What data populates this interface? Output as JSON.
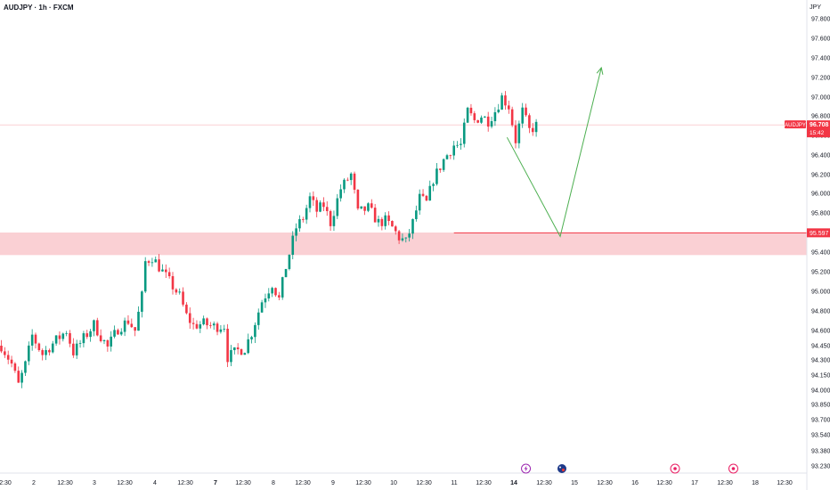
{
  "header": {
    "title": "AUDJPY · 1h · FXCM",
    "currency": "JPY"
  },
  "colors": {
    "up": "#089981",
    "down": "#f23645",
    "zone_fill": "#f9c8cc",
    "zone_line": "#f23645",
    "arrow": "#4caf50",
    "axis_text": "#131722",
    "price_line": "#f7a3aa"
  },
  "chart_data": {
    "type": "candlestick",
    "symbol": "AUDJPY",
    "ylabel": "JPY",
    "y_ticks": [
      "97.800",
      "97.600",
      "97.400",
      "97.200",
      "97.000",
      "96.800",
      "96.600",
      "96.400",
      "96.200",
      "96.000",
      "95.800",
      "95.600",
      "95.400",
      "95.200",
      "95.000",
      "94.800",
      "94.600",
      "94.450",
      "94.300",
      "94.150",
      "94.000",
      "93.850",
      "93.700",
      "93.540",
      "93.380",
      "93.230"
    ],
    "x_ticks": [
      "2:30",
      "2",
      "12:30",
      "3",
      "12:30",
      "4",
      "12:30",
      "7",
      "12:30",
      "8",
      "12:30",
      "9",
      "12:30",
      "10",
      "12:30",
      "11",
      "12:30",
      "14",
      "12:30",
      "15",
      "12:30",
      "16",
      "12:30",
      "17",
      "12:30",
      "18",
      "12:30"
    ],
    "bold_x_ticks": [
      "7",
      "14"
    ],
    "last_price": {
      "symbol": "AUDJPY",
      "value": "96.708",
      "countdown": "15:42"
    },
    "support_zone": {
      "top": 95.6,
      "bottom": 95.37,
      "line": 95.597,
      "label": "95.597"
    },
    "projection": {
      "points": [
        {
          "t": 147.5,
          "p": 96.58
        },
        {
          "t": 163,
          "p": 95.56
        },
        {
          "t": 175,
          "p": 97.3
        }
      ]
    },
    "event_markers": [
      {
        "t": 153,
        "kind": "lightning"
      },
      {
        "t": 163.5,
        "kind": "flag"
      },
      {
        "t": 196.5,
        "kind": "dot"
      },
      {
        "t": 213.5,
        "kind": "dot"
      }
    ],
    "close_path": [
      [
        0,
        94.45
      ],
      [
        3,
        94.26
      ],
      [
        5,
        94.05
      ],
      [
        7,
        94.25
      ],
      [
        9,
        94.55
      ],
      [
        12,
        94.36
      ],
      [
        15,
        94.47
      ],
      [
        19,
        94.6
      ],
      [
        21,
        94.38
      ],
      [
        24,
        94.52
      ],
      [
        27,
        94.66
      ],
      [
        31,
        94.43
      ],
      [
        34,
        94.62
      ],
      [
        37,
        94.7
      ],
      [
        39,
        94.6
      ],
      [
        37.3,
        94.95
      ],
      [
        38.5,
        95.3
      ],
      [
        40,
        95.35
      ],
      [
        42,
        95.25
      ],
      [
        45,
        95.1
      ],
      [
        48,
        94.95
      ],
      [
        50,
        94.75
      ],
      [
        52,
        94.65
      ],
      [
        55,
        94.67
      ],
      [
        58,
        94.64
      ],
      [
        61,
        94.65
      ],
      [
        62,
        94.33
      ],
      [
        65,
        94.4
      ],
      [
        67,
        94.42
      ],
      [
        69,
        94.58
      ],
      [
        72,
        94.9
      ],
      [
        75,
        95.08
      ],
      [
        77,
        94.92
      ],
      [
        79,
        95.25
      ],
      [
        82,
        95.65
      ],
      [
        84,
        95.75
      ],
      [
        86,
        95.95
      ],
      [
        88,
        95.82
      ],
      [
        90,
        95.88
      ],
      [
        92,
        95.7
      ],
      [
        95,
        96.05
      ],
      [
        98,
        96.2
      ],
      [
        100,
        95.8
      ],
      [
        103,
        95.85
      ],
      [
        106,
        95.7
      ],
      [
        108,
        95.72
      ],
      [
        110,
        95.65
      ],
      [
        112,
        95.55
      ],
      [
        114,
        95.5
      ],
      [
        116,
        95.7
      ],
      [
        118,
        95.95
      ],
      [
        120,
        95.9
      ],
      [
        122,
        96.15
      ],
      [
        125,
        96.35
      ],
      [
        128,
        96.5
      ],
      [
        130,
        96.5
      ],
      [
        132,
        96.85
      ],
      [
        134,
        96.75
      ],
      [
        136,
        96.8
      ],
      [
        138,
        96.75
      ],
      [
        140,
        96.85
      ],
      [
        142,
        97.0
      ],
      [
        144,
        96.9
      ],
      [
        146,
        96.55
      ],
      [
        148,
        96.85
      ],
      [
        150,
        96.65
      ],
      [
        152,
        96.7
      ]
    ]
  }
}
